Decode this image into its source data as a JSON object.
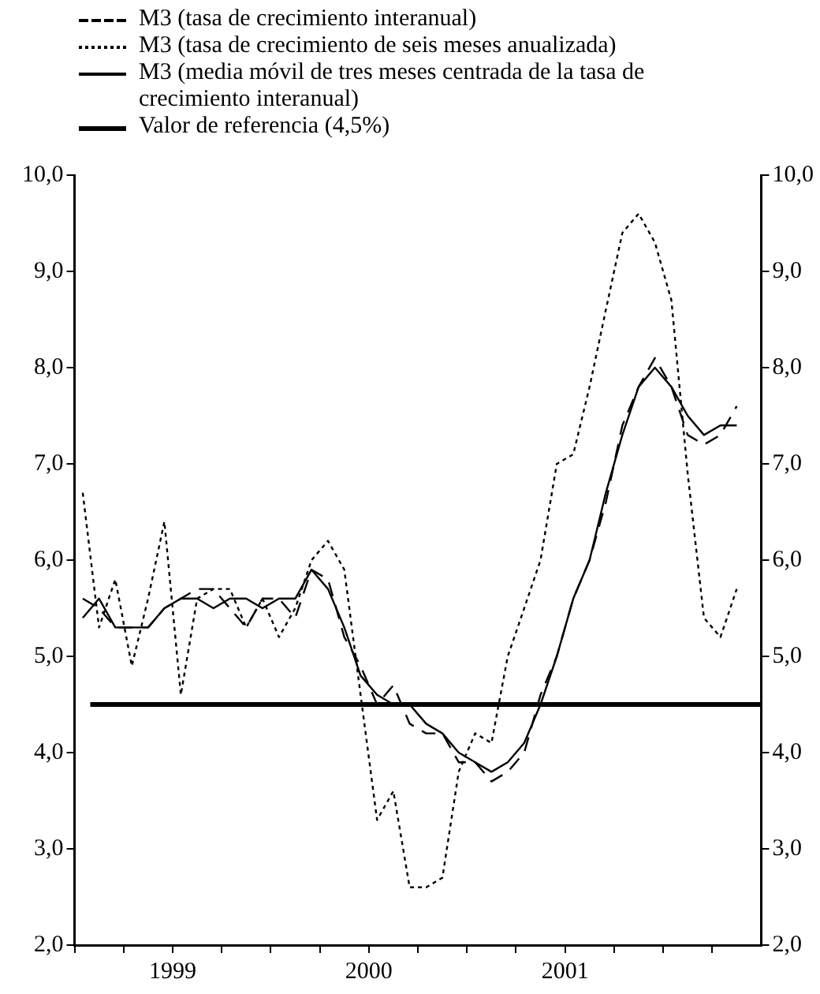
{
  "chart_data": {
    "type": "line",
    "x": [
      1999.042,
      1999.125,
      1999.208,
      1999.292,
      1999.375,
      1999.458,
      1999.542,
      1999.625,
      1999.708,
      1999.792,
      1999.875,
      1999.958,
      2000.042,
      2000.125,
      2000.208,
      2000.292,
      2000.375,
      2000.458,
      2000.542,
      2000.625,
      2000.708,
      2000.792,
      2000.875,
      2000.958,
      2001.042,
      2001.125,
      2001.208,
      2001.292,
      2001.375,
      2001.458,
      2001.542,
      2001.625,
      2001.708,
      2001.792,
      2001.875,
      2001.958,
      2002.042,
      2002.125,
      2002.208,
      2002.292,
      2002.375
    ],
    "series": [
      {
        "name": "M3 (tasa de crecimiento interanual)",
        "color": "#000000",
        "line_style": "dashed",
        "values": [
          5.6,
          5.5,
          5.3,
          5.3,
          5.3,
          5.5,
          5.6,
          5.7,
          5.7,
          5.5,
          5.3,
          5.6,
          5.6,
          5.4,
          5.9,
          5.8,
          5.2,
          4.9,
          4.5,
          4.7,
          4.3,
          4.2,
          4.2,
          3.9,
          3.9,
          3.7,
          3.8,
          4.0,
          4.6,
          5.0,
          5.6,
          6.0,
          6.6,
          7.4,
          7.8,
          8.1,
          7.8,
          7.3,
          7.2,
          7.3,
          7.6
        ]
      },
      {
        "name": "M3 (tasa de crecimiento de seis meses anualizada)",
        "color": "#000000",
        "line_style": "dotted",
        "values": [
          6.7,
          5.3,
          5.8,
          4.9,
          5.6,
          6.4,
          4.6,
          5.6,
          5.7,
          5.7,
          5.3,
          5.6,
          5.2,
          5.5,
          6.0,
          6.2,
          5.9,
          4.6,
          3.3,
          3.6,
          2.6,
          2.6,
          2.7,
          3.8,
          4.2,
          4.1,
          5.0,
          5.5,
          6.0,
          7.0,
          7.1,
          7.8,
          8.6,
          9.4,
          9.6,
          9.3,
          8.7,
          6.9,
          5.4,
          5.2,
          5.7
        ]
      },
      {
        "name": "M3 (media móvil de tres meses centrada de la tasa de crecimiento interanual)",
        "color": "#000000",
        "line_style": "solid",
        "values": [
          5.4,
          5.6,
          5.3,
          5.3,
          5.3,
          5.5,
          5.6,
          5.6,
          5.5,
          5.6,
          5.6,
          5.5,
          5.6,
          5.6,
          5.9,
          5.7,
          5.3,
          4.8,
          4.6,
          4.5,
          4.5,
          4.3,
          4.2,
          4.0,
          3.9,
          3.8,
          3.9,
          4.1,
          4.5,
          5.0,
          5.6,
          6.0,
          6.7,
          7.3,
          7.8,
          8.0,
          7.8,
          7.5,
          7.3,
          7.4,
          7.4
        ]
      }
    ],
    "ref_lines": [
      {
        "axis": "y",
        "value": 4.5,
        "label": "Valor de referencia (4,5%)",
        "color": "#000000",
        "line_style": "solid"
      }
    ],
    "xlim": [
      1999,
      2002.5
    ],
    "xticks": [
      {
        "value": 1999,
        "label": null
      },
      {
        "value": 1999.25,
        "label": null
      },
      {
        "value": 1999.5,
        "label": "1999"
      },
      {
        "value": 1999.75,
        "label": null
      },
      {
        "value": 2000,
        "label": null
      },
      {
        "value": 2000.25,
        "label": null
      },
      {
        "value": 2000.5,
        "label": "2000"
      },
      {
        "value": 2000.75,
        "label": null
      },
      {
        "value": 2001,
        "label": null
      },
      {
        "value": 2001.25,
        "label": null
      },
      {
        "value": 2001.5,
        "label": "2001"
      },
      {
        "value": 2001.75,
        "label": null
      },
      {
        "value": 2002,
        "label": null
      },
      {
        "value": 2002.25,
        "label": null
      }
    ],
    "ylim": [
      2,
      10
    ],
    "yticks": [
      {
        "value": 2,
        "label": "2,0"
      },
      {
        "value": 3,
        "label": "3,0"
      },
      {
        "value": 4,
        "label": "4,0"
      },
      {
        "value": 5,
        "label": "5,0"
      },
      {
        "value": 6,
        "label": "6,0"
      },
      {
        "value": 7,
        "label": "7,0"
      },
      {
        "value": 8,
        "label": "8,0"
      },
      {
        "value": 9,
        "label": "9,0"
      },
      {
        "value": 10,
        "label": "10,0"
      }
    ],
    "y2lim": [
      2,
      10
    ],
    "y2ticks": [
      {
        "value": 2,
        "label": "2,0"
      },
      {
        "value": 3,
        "label": "3,0"
      },
      {
        "value": 4,
        "label": "4,0"
      },
      {
        "value": 5,
        "label": "5,0"
      },
      {
        "value": 6,
        "label": "6,0"
      },
      {
        "value": 7,
        "label": "7,0"
      },
      {
        "value": 8,
        "label": "8,0"
      },
      {
        "value": 9,
        "label": "9,0"
      },
      {
        "value": 10,
        "label": "10,0"
      }
    ],
    "grid": false,
    "legend": "top",
    "marker": "none"
  }
}
